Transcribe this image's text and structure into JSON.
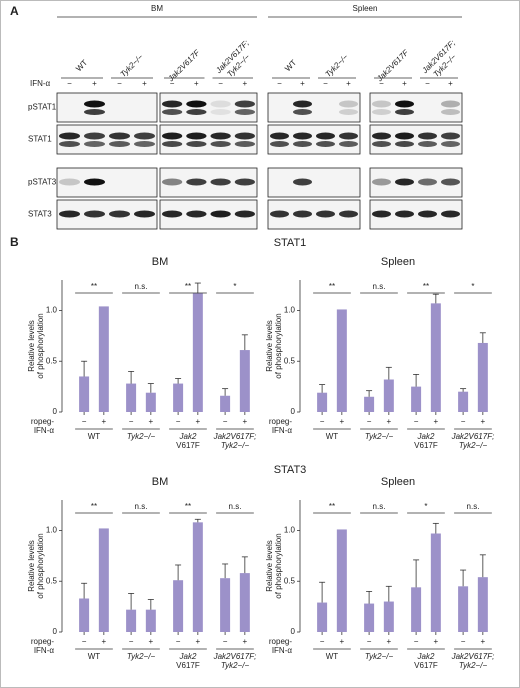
{
  "panel_a": {
    "label": "A",
    "treatment": "IFN-α",
    "signs": [
      "−",
      "+"
    ],
    "rows": [
      "pSTAT1",
      "STAT1",
      "pSTAT3",
      "STAT3"
    ],
    "groups": [
      {
        "name": "BM",
        "genotypes": [
          [
            "WT"
          ],
          [
            "Tyk2−/−"
          ],
          [
            "Jak2V617F"
          ],
          [
            "Jak2V617F;",
            "Tyk2−/−"
          ]
        ]
      },
      {
        "name": "Spleen",
        "genotypes": [
          [
            "WT"
          ],
          [
            "Tyk2−/−"
          ],
          [
            "Jak2V617F"
          ],
          [
            "Jak2V617F;",
            "Tyk2−/−"
          ]
        ]
      }
    ]
  },
  "panel_b": {
    "label": "B",
    "section_titles": [
      "STAT1",
      "STAT3"
    ]
  },
  "chart_data": [
    {
      "type": "bar",
      "title": "BM",
      "ylabel": [
        "Relative levels",
        "of phosphorylation"
      ],
      "xlabel": [
        "ropeg-",
        "IFN-α"
      ],
      "categories": [
        "−",
        "+",
        "−",
        "+",
        "−",
        "+",
        "−",
        "+"
      ],
      "groups": [
        [
          "WT"
        ],
        [
          "Tyk2−/−"
        ],
        [
          "Jak2",
          "V617F"
        ],
        [
          "Jak2V617F;",
          "Tyk2−/−"
        ]
      ],
      "significance": [
        "**",
        "n.s.",
        "**",
        "*"
      ],
      "series": [
        {
          "color": "#9c91c9",
          "values": [
            0.35,
            1.04,
            0.28,
            0.19,
            0.28,
            1.17,
            0.16,
            0.61
          ],
          "errors": [
            0.15,
            0,
            0.12,
            0.09,
            0.05,
            0.1,
            0.07,
            0.15
          ]
        }
      ],
      "ylim": [
        0,
        1.3
      ],
      "yticks": [
        0,
        0.5,
        {
          "value": 1,
          "label": "1.0"
        }
      ]
    },
    {
      "type": "bar",
      "title": "Spleen",
      "ylabel": [
        "Relative levels",
        "of phosphorylation"
      ],
      "xlabel": [
        "ropeg-",
        "IFN-α"
      ],
      "categories": [
        "−",
        "+",
        "−",
        "+",
        "−",
        "+",
        "−",
        "+"
      ],
      "groups": [
        [
          "WT"
        ],
        [
          "Tyk2−/−"
        ],
        [
          "Jak2",
          "V617F"
        ],
        [
          "Jak2V617F;",
          "Tyk2−/−"
        ]
      ],
      "significance": [
        "**",
        "n.s.",
        "**",
        "*"
      ],
      "series": [
        {
          "color": "#9c91c9",
          "values": [
            0.19,
            1.01,
            0.15,
            0.32,
            0.25,
            1.07,
            0.2,
            0.68
          ],
          "errors": [
            0.08,
            0,
            0.06,
            0.12,
            0.12,
            0.09,
            0.03,
            0.1
          ]
        }
      ],
      "ylim": [
        0,
        1.3
      ],
      "yticks": [
        0,
        0.5,
        {
          "value": 1,
          "label": "1.0"
        }
      ]
    },
    {
      "type": "bar",
      "title": "BM",
      "ylabel": [
        "Relative levels",
        "of phosphorylation"
      ],
      "xlabel": [
        "ropeg-",
        "IFN-α"
      ],
      "categories": [
        "−",
        "+",
        "−",
        "+",
        "−",
        "+",
        "−",
        "+"
      ],
      "groups": [
        [
          "WT"
        ],
        [
          "Tyk2−/−"
        ],
        [
          "Jak2",
          "V617F"
        ],
        [
          "Jak2V617F;",
          "Tyk2−/−"
        ]
      ],
      "significance": [
        "**",
        "n.s.",
        "**",
        "n.s."
      ],
      "series": [
        {
          "color": "#9c91c9",
          "values": [
            0.33,
            1.02,
            0.22,
            0.22,
            0.51,
            1.08,
            0.53,
            0.58
          ],
          "errors": [
            0.15,
            0,
            0.16,
            0.1,
            0.15,
            0.03,
            0.14,
            0.16
          ]
        }
      ],
      "ylim": [
        0,
        1.3
      ],
      "yticks": [
        0,
        0.5,
        {
          "value": 1,
          "label": "1.0"
        }
      ]
    },
    {
      "type": "bar",
      "title": "Spleen",
      "ylabel": [
        "Relative levels",
        "of phosphorylation"
      ],
      "xlabel": [
        "ropeg-",
        "IFN-α"
      ],
      "categories": [
        "−",
        "+",
        "−",
        "+",
        "−",
        "+",
        "−",
        "+"
      ],
      "groups": [
        [
          "WT"
        ],
        [
          "Tyk2−/−"
        ],
        [
          "Jak2",
          "V617F"
        ],
        [
          "Jak2V617F;",
          "Tyk2−/−"
        ]
      ],
      "significance": [
        "**",
        "n.s.",
        "*",
        "n.s."
      ],
      "series": [
        {
          "color": "#9c91c9",
          "values": [
            0.29,
            1.01,
            0.28,
            0.3,
            0.44,
            0.97,
            0.45,
            0.54
          ],
          "errors": [
            0.2,
            0,
            0.12,
            0.15,
            0.27,
            0.1,
            0.16,
            0.22
          ]
        }
      ],
      "ylim": [
        0,
        1.3
      ],
      "yticks": [
        0,
        0.5,
        {
          "value": 1,
          "label": "1.0"
        }
      ]
    }
  ]
}
